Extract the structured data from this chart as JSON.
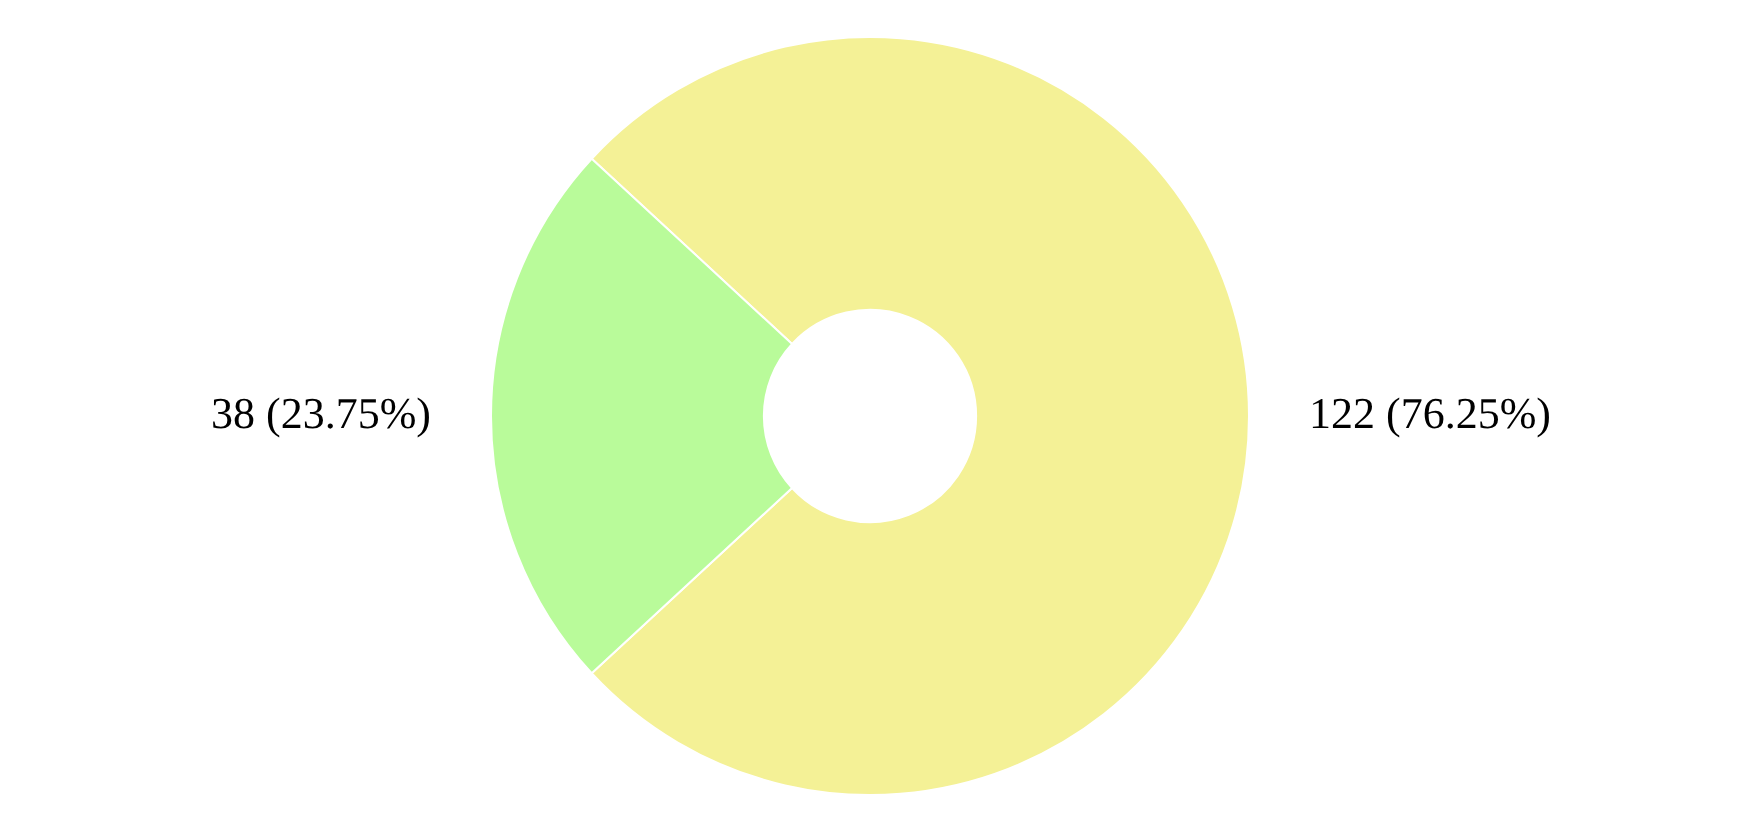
{
  "chart_data": {
    "type": "donut",
    "categories": [
      null,
      null
    ],
    "values": [
      122,
      38
    ],
    "colors": [
      "#f4f196",
      "#b9fb9a"
    ],
    "value_labels": [
      "122 (76.25%)",
      "38 (23.75%)"
    ],
    "legend": false
  }
}
